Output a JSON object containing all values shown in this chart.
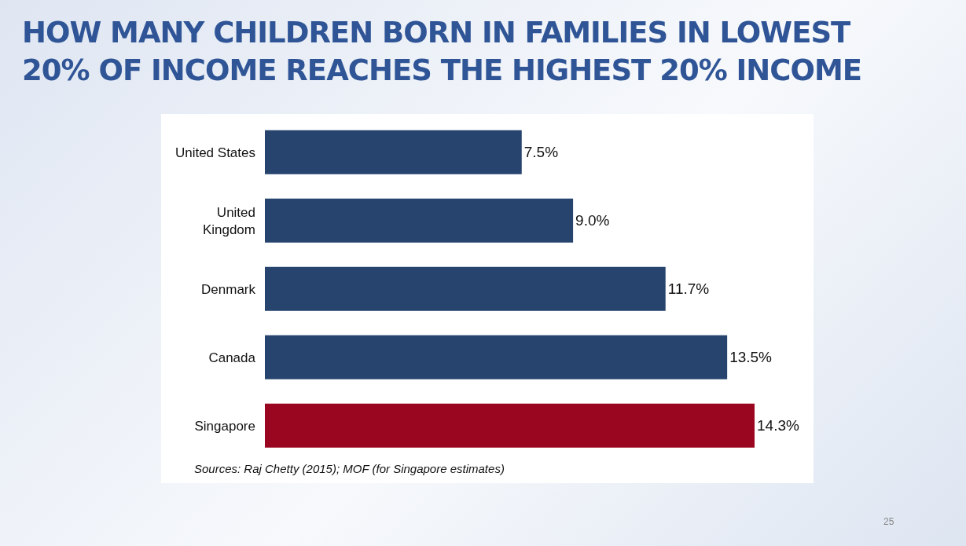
{
  "chart_data": {
    "type": "bar",
    "orientation": "horizontal",
    "title": "HOW MANY CHILDREN BORN IN FAMILIES IN LOWEST 20% OF INCOME REACHES THE HIGHEST 20% INCOME",
    "categories": [
      "United States",
      "United Kingdom",
      "Denmark",
      "Canada",
      "Singapore"
    ],
    "values": [
      7.5,
      9.0,
      11.7,
      13.5,
      14.3
    ],
    "colors": [
      "#26446e",
      "#26446e",
      "#26446e",
      "#26446e",
      "#9a0520"
    ],
    "value_labels": [
      "7.5%",
      "9.0%",
      "11.7%",
      "13.5%",
      "14.3%"
    ],
    "annotations": [
      "Sources: Raj Chetty (2015); MOF (for Singapore estimates)",
      "25"
    ]
  }
}
